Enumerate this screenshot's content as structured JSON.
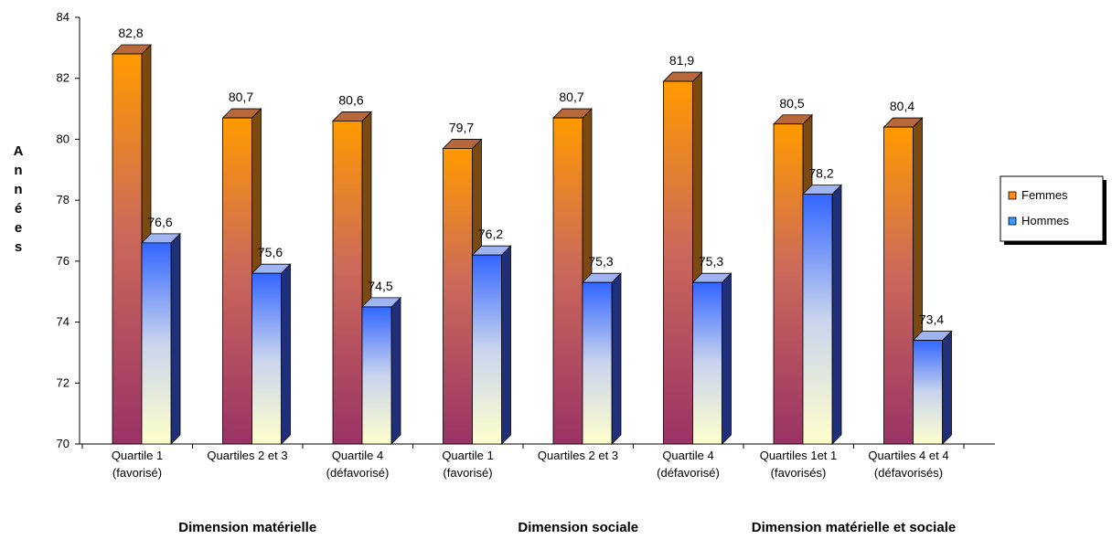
{
  "chart_data": {
    "type": "bar",
    "categories": [
      [
        "Quartile 1",
        "(favorisé)"
      ],
      [
        "Quartiles 2 et 3"
      ],
      [
        "Quartile 4",
        "(défavorisé)"
      ],
      [
        "Quartile 1",
        "(favorisé)"
      ],
      [
        "Quartiles 2 et 3"
      ],
      [
        "Quartile 4",
        "(défavorisé)"
      ],
      [
        "Quartiles 1et 1",
        "(favorisés)"
      ],
      [
        "Quartiles 4 et 4",
        "(défavorisés)"
      ]
    ],
    "series": [
      {
        "name": "Femmes",
        "values": [
          82.8,
          80.7,
          80.6,
          79.7,
          80.7,
          81.9,
          80.5,
          80.4
        ],
        "labels": [
          "82,8",
          "80,7",
          "80,6",
          "79,7",
          "80,7",
          "81,9",
          "80,5",
          "80,4"
        ]
      },
      {
        "name": "Hommes",
        "values": [
          76.6,
          75.6,
          74.5,
          76.2,
          75.3,
          75.3,
          78.2,
          73.4
        ],
        "labels": [
          "76,6",
          "75,6",
          "74,5",
          "76,2",
          "75,3",
          "75,3",
          "78,2",
          "73,4"
        ]
      }
    ],
    "groups": [
      "Dimension matérielle",
      "Dimension sociale",
      "Dimension matérielle et sociale"
    ],
    "group_spans": [
      [
        0,
        2
      ],
      [
        3,
        5
      ],
      [
        6,
        7
      ]
    ],
    "ylabel": "Années",
    "ylim": [
      70,
      84
    ],
    "yticks": [
      70,
      72,
      74,
      76,
      78,
      80,
      82,
      84
    ],
    "title": "",
    "xlabel": "",
    "grid": false,
    "legend_position": "right",
    "colors": {
      "femmes_top": "#ff9a00",
      "femmes_mid": "#cc6a5a",
      "femmes_bottom": "#993366",
      "femmes_side": "#7a4a10",
      "femmes_cap": "#b8683a",
      "hommes_top": "#3366ff",
      "hommes_mid": "#c9d4ee",
      "hommes_bottom": "#ffffcc",
      "hommes_side": "#1f2f7a",
      "hommes_cap": "#9fb4f0",
      "femmes_legend": "#ff8c1a",
      "hommes_legend": "#3399ff"
    }
  }
}
